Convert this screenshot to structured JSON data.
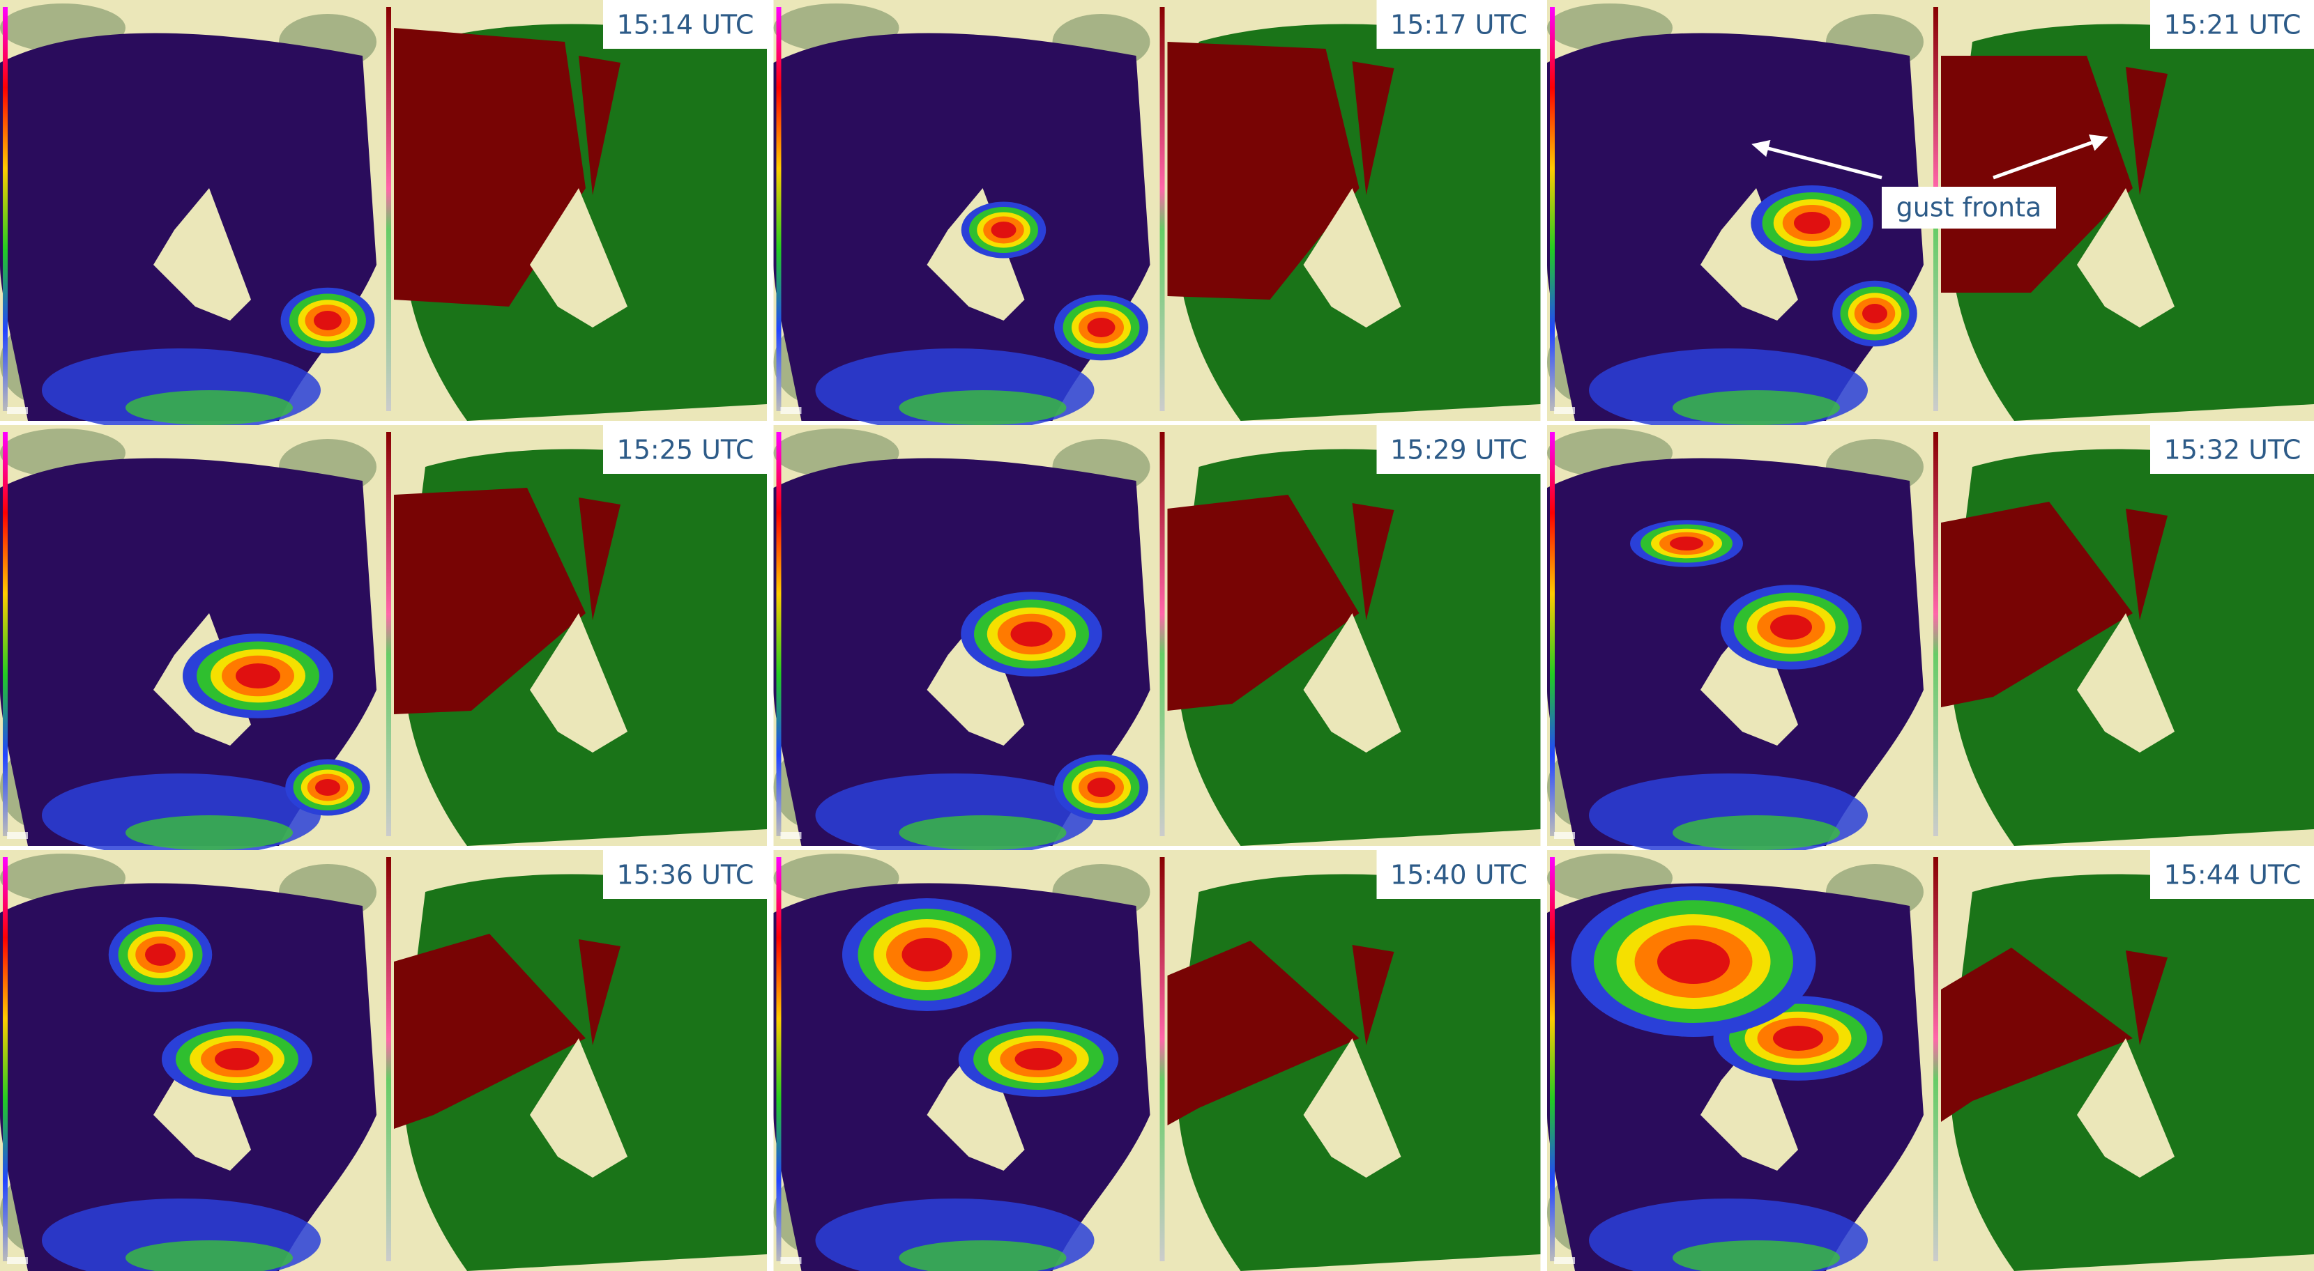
{
  "panels": [
    {
      "time": "15:14 UTC"
    },
    {
      "time": "15:17 UTC"
    },
    {
      "time": "15:21 UTC"
    },
    {
      "time": "15:25 UTC"
    },
    {
      "time": "15:29 UTC"
    },
    {
      "time": "15:32 UTC"
    },
    {
      "time": "15:36 UTC"
    },
    {
      "time": "15:40 UTC"
    },
    {
      "time": "15:44 UTC"
    }
  ],
  "annotation": {
    "text": "gust fronta"
  }
}
